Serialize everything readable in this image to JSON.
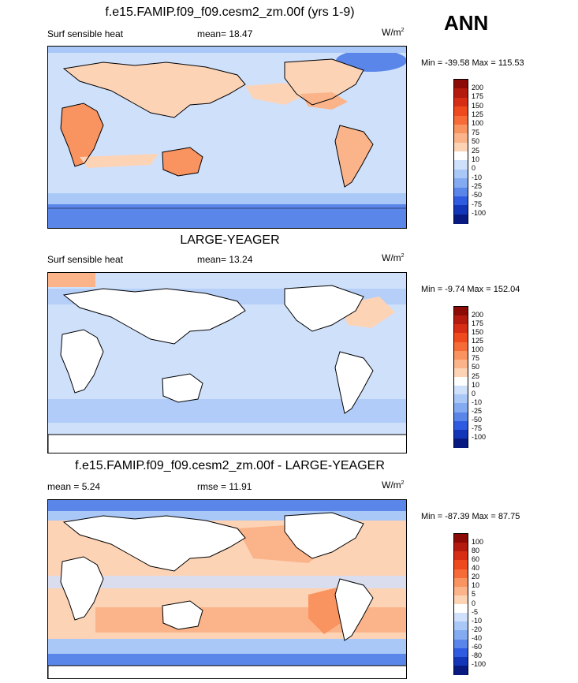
{
  "season": "ANN",
  "panels": [
    {
      "title": "f.e15.FAMIP.f09_f09.cesm2_zm.00f (yrs 1-9)",
      "left": "Surf sensible heat",
      "center": "mean=  18.47",
      "units": "W/m",
      "units_sup": "2",
      "minmax": "Min = -39.58 Max = 115.53",
      "levels": [
        "200",
        "175",
        "150",
        "125",
        "100",
        "75",
        "50",
        "25",
        "10",
        "0",
        "-10",
        "-25",
        "-50",
        "-75",
        "-100"
      ],
      "colors": [
        "#8c0b07",
        "#b41a0e",
        "#d62d14",
        "#ee4a1e",
        "#f66b38",
        "#f9935f",
        "#fbb48a",
        "#fdd3b6",
        "#ffffff",
        "#cfe0fb",
        "#a9c7f7",
        "#84aaf1",
        "#5a86ea",
        "#2f5be0",
        "#1335b8",
        "#081a80"
      ]
    },
    {
      "title": "LARGE-YEAGER",
      "left": "Surf sensible heat",
      "center": "mean=  13.24",
      "units": "W/m",
      "units_sup": "2",
      "minmax": "Min =  -9.74 Max = 152.04",
      "levels": [
        "200",
        "175",
        "150",
        "125",
        "100",
        "75",
        "50",
        "25",
        "10",
        "0",
        "-10",
        "-25",
        "-50",
        "-75",
        "-100"
      ],
      "colors": [
        "#8c0b07",
        "#b41a0e",
        "#d62d14",
        "#ee4a1e",
        "#f66b38",
        "#f9935f",
        "#fbb48a",
        "#fdd3b6",
        "#ffffff",
        "#cfe0fb",
        "#a9c7f7",
        "#84aaf1",
        "#5a86ea",
        "#2f5be0",
        "#1335b8",
        "#081a80"
      ]
    },
    {
      "title": "f.e15.FAMIP.f09_f09.cesm2_zm.00f - LARGE-YEAGER",
      "left": "mean =   5.24",
      "center": "rmse =  11.91",
      "units": "W/m",
      "units_sup": "2",
      "minmax": "Min = -87.39 Max =  87.75",
      "levels": [
        "100",
        "80",
        "60",
        "40",
        "20",
        "10",
        "5",
        "0",
        "-5",
        "-10",
        "-20",
        "-40",
        "-60",
        "-80",
        "-100"
      ],
      "colors": [
        "#8c0b07",
        "#b41a0e",
        "#d62d14",
        "#ee4a1e",
        "#f66b38",
        "#f9935f",
        "#fbb48a",
        "#fdd3b6",
        "#ffffff",
        "#cfe0fb",
        "#a9c7f7",
        "#84aaf1",
        "#5a86ea",
        "#2f5be0",
        "#1335b8",
        "#081a80"
      ]
    }
  ],
  "chart_data": [
    {
      "type": "heatmap",
      "title": "f.e15.FAMIP.f09_f09.cesm2_zm.00f (yrs 1-9)",
      "variable": "Surf sensible heat",
      "units": "W/m2",
      "mean": 18.47,
      "min": -39.58,
      "max": 115.53,
      "contour_levels": [
        -100,
        -75,
        -50,
        -25,
        -10,
        0,
        10,
        25,
        50,
        75,
        100,
        125,
        150,
        175,
        200
      ]
    },
    {
      "type": "heatmap",
      "title": "LARGE-YEAGER",
      "variable": "Surf sensible heat",
      "units": "W/m2",
      "mean": 13.24,
      "min": -9.74,
      "max": 152.04,
      "contour_levels": [
        -100,
        -75,
        -50,
        -25,
        -10,
        0,
        10,
        25,
        50,
        75,
        100,
        125,
        150,
        175,
        200
      ]
    },
    {
      "type": "heatmap",
      "title": "f.e15.FAMIP.f09_f09.cesm2_zm.00f - LARGE-YEAGER",
      "units": "W/m2",
      "mean": 5.24,
      "rmse": 11.91,
      "min": -87.39,
      "max": 87.75,
      "contour_levels": [
        -100,
        -80,
        -60,
        -40,
        -20,
        -10,
        -5,
        0,
        5,
        10,
        20,
        40,
        60,
        80,
        100
      ]
    }
  ]
}
